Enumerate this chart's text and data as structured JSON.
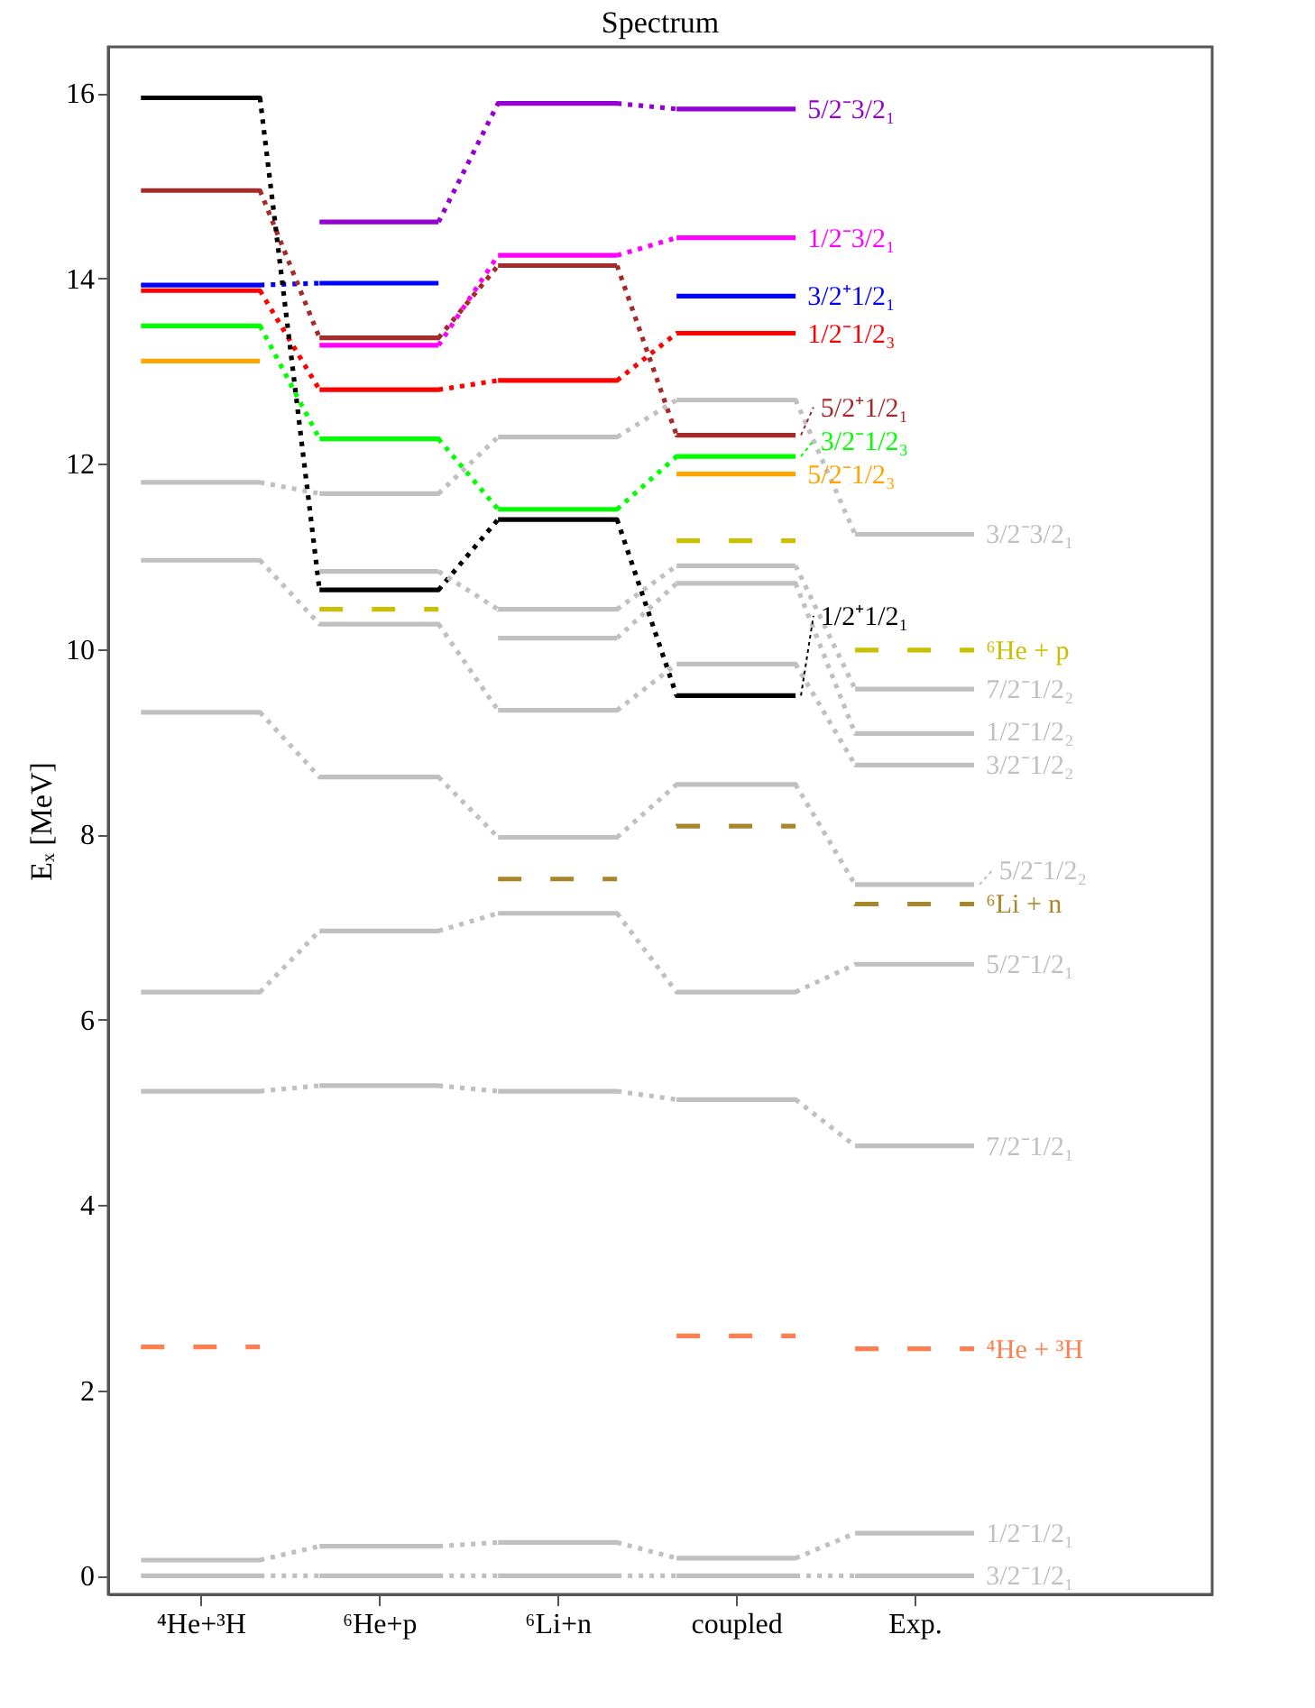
{
  "chart_data": {
    "type": "line",
    "title": "Spectrum",
    "ylabel": "Eₓ [MeV]",
    "categories": [
      null,
      "⁴He+³H",
      null,
      null,
      "⁶He+p",
      null,
      null,
      "⁶Li+n",
      null,
      null,
      "coupled",
      null,
      null,
      "Exp.",
      null
    ],
    "ylim": [
      -0.2,
      16.5
    ],
    "yticks": [
      0,
      2,
      4,
      6,
      8,
      10,
      12,
      14,
      16
    ],
    "legend": "right",
    "line_style": "dotted",
    "series": [
      {
        "name": "5/2⁻3/2₁",
        "color": "#9400d3",
        "values": [
          null,
          null,
          null,
          14.61,
          14.61,
          14.61,
          15.89,
          15.89,
          15.89,
          15.83,
          15.83,
          15.83,
          null,
          null,
          null
        ]
      },
      {
        "name": "1/2⁻3/2₁",
        "color": "#ff00ff",
        "values": [
          null,
          null,
          null,
          13.28,
          13.28,
          13.28,
          14.25,
          14.25,
          14.25,
          14.44,
          14.44,
          14.44,
          null,
          null,
          null
        ]
      },
      {
        "name": "3/2⁺1/2₁",
        "color": "#0000ff",
        "values": [
          13.93,
          13.93,
          13.93,
          13.95,
          13.95,
          13.95,
          null,
          null,
          null,
          13.81,
          13.81,
          13.81,
          null,
          null,
          null
        ]
      },
      {
        "name": "1/2⁻1/2₃",
        "color": "#ff0000",
        "values": [
          13.87,
          13.87,
          13.87,
          12.8,
          12.8,
          12.8,
          12.9,
          12.9,
          12.9,
          13.41,
          13.41,
          13.41,
          null,
          null,
          null
        ]
      },
      {
        "name": "5/2⁺1/2₁",
        "color": "#a52a2a",
        "values": [
          14.95,
          14.95,
          14.95,
          13.36,
          13.36,
          13.36,
          14.14,
          14.14,
          14.14,
          12.31,
          12.31,
          12.31,
          null,
          null,
          null
        ]
      },
      {
        "name": "3/2⁻1/2₃",
        "color": "#00ff00",
        "values": [
          13.49,
          13.49,
          13.49,
          12.27,
          12.27,
          12.27,
          11.51,
          11.51,
          11.51,
          12.08,
          12.08,
          12.08,
          null,
          null,
          null
        ]
      },
      {
        "name": "5/2⁻1/2₃",
        "color": "#ffa500",
        "values": [
          13.11,
          13.11,
          13.11,
          null,
          null,
          null,
          null,
          null,
          null,
          11.89,
          11.89,
          11.89,
          null,
          null,
          null
        ]
      },
      {
        "name": "1/2⁺1/2₁",
        "color": "#000000",
        "values": [
          15.95,
          15.95,
          15.95,
          10.64,
          10.64,
          10.64,
          11.4,
          11.4,
          11.4,
          9.5,
          9.5,
          9.5,
          null,
          null,
          null
        ]
      },
      {
        "name": "3/2⁻3/2₁",
        "color": "#c0c0c0",
        "values": [
          11.8,
          11.8,
          11.8,
          11.68,
          11.68,
          11.68,
          12.29,
          12.29,
          12.29,
          12.69,
          12.69,
          12.69,
          11.24,
          11.24,
          11.24
        ]
      },
      {
        "name": "⁶He + p",
        "color": "#c8c000",
        "line_style": "dashed",
        "values": [
          null,
          null,
          null,
          10.43,
          10.43,
          10.43,
          null,
          null,
          null,
          11.17,
          11.17,
          11.17,
          9.99,
          9.99,
          9.99
        ]
      },
      {
        "name": "7/2⁻1/2₂",
        "color": "#c0c0c0",
        "values": [
          null,
          null,
          null,
          10.84,
          10.84,
          10.84,
          10.43,
          10.43,
          10.43,
          10.9,
          10.9,
          10.9,
          9.57,
          9.57,
          9.57
        ]
      },
      {
        "name": "1/2⁻1/2₂",
        "color": "#c0c0c0",
        "values": [
          null,
          null,
          null,
          null,
          null,
          null,
          10.12,
          10.12,
          10.12,
          10.71,
          10.71,
          10.71,
          9.09,
          9.09,
          9.09
        ]
      },
      {
        "name": "3/2⁻1/2₂",
        "color": "#c0c0c0",
        "values": [
          10.96,
          10.96,
          10.96,
          10.27,
          10.27,
          10.27,
          9.34,
          9.34,
          9.34,
          9.84,
          9.84,
          9.84,
          8.75,
          8.75,
          8.75
        ]
      },
      {
        "name": "5/2⁻1/2₂",
        "color": "#c0c0c0",
        "values": [
          9.32,
          9.32,
          9.32,
          8.62,
          8.62,
          8.62,
          7.97,
          7.97,
          7.97,
          8.54,
          8.54,
          8.54,
          7.46,
          7.46,
          7.46
        ]
      },
      {
        "name": "⁶Li + n",
        "color": "#a8862a",
        "line_style": "dashed",
        "values": [
          null,
          null,
          null,
          null,
          null,
          null,
          7.52,
          7.52,
          7.52,
          8.09,
          8.09,
          8.09,
          7.25,
          7.25,
          7.25
        ]
      },
      {
        "name": "5/2⁻1/2₁",
        "color": "#c0c0c0",
        "values": [
          6.3,
          6.3,
          6.3,
          6.96,
          6.96,
          6.96,
          7.15,
          7.15,
          7.15,
          6.3,
          6.3,
          6.3,
          6.6,
          6.6,
          6.6
        ]
      },
      {
        "name": "7/2⁻1/2₁",
        "color": "#c0c0c0",
        "values": [
          5.23,
          5.23,
          5.23,
          5.29,
          5.29,
          5.29,
          5.23,
          5.23,
          5.23,
          5.14,
          5.14,
          5.14,
          4.64,
          4.64,
          4.64
        ]
      },
      {
        "name": "⁴He + ³H",
        "color": "#ff7f50",
        "line_style": "dashed",
        "values": [
          2.47,
          2.47,
          2.47,
          null,
          null,
          null,
          null,
          null,
          null,
          2.59,
          2.59,
          2.59,
          2.45,
          2.45,
          2.45
        ]
      },
      {
        "name": "1/2⁻1/2₁",
        "color": "#c0c0c0",
        "values": [
          0.17,
          0.17,
          0.17,
          0.32,
          0.32,
          0.32,
          0.36,
          0.36,
          0.36,
          0.19,
          0.19,
          0.19,
          0.46,
          0.46,
          0.46
        ]
      },
      {
        "name": "3/2⁻1/2₁",
        "color": "#c0c0c0",
        "values": [
          0,
          0,
          0,
          0,
          0,
          0,
          0,
          0,
          0,
          0,
          0,
          0,
          0,
          0,
          0
        ]
      }
    ]
  }
}
